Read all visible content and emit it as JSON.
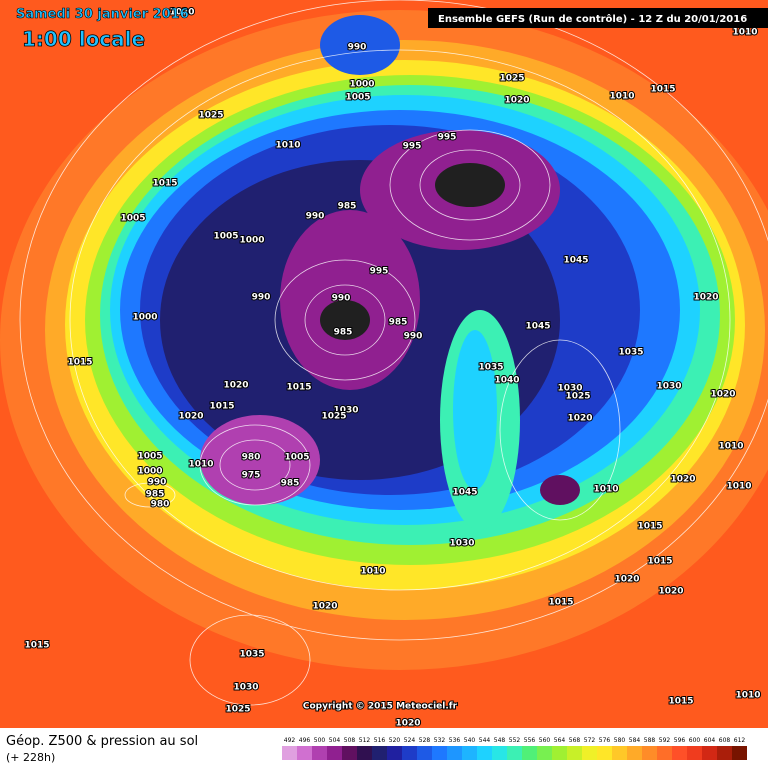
{
  "header": {
    "date": "Samedi 30 janvier 2016",
    "time": "1:00 locale",
    "model": "Ensemble GEFS  (Run de contrôle)  - 12 Z du 20/01/2016"
  },
  "copyright": "Copyright © 2015 Meteociel.fr",
  "footer": {
    "title": "Géop. Z500 & pression au sol",
    "lead": "(+ 228h)"
  },
  "legend": {
    "levels": [
      492,
      496,
      500,
      504,
      508,
      512,
      516,
      520,
      524,
      528,
      532,
      536,
      540,
      544,
      548,
      552,
      556,
      560,
      564,
      568,
      572,
      576,
      580,
      584,
      588,
      592,
      596,
      600,
      604,
      608,
      612
    ],
    "colors": [
      "#e0a0e0",
      "#d070d0",
      "#b040b0",
      "#902090",
      "#601060",
      "#301050",
      "#202070",
      "#2020a0",
      "#1e3cc8",
      "#1e5ae6",
      "#1e78ff",
      "#1e96ff",
      "#1eb4ff",
      "#1ed2ff",
      "#28e6e6",
      "#3cf0b4",
      "#50f078",
      "#78f050",
      "#a0f032",
      "#c8f028",
      "#f0f028",
      "#ffe628",
      "#ffc828",
      "#ffaa28",
      "#ff8c28",
      "#ff6e28",
      "#ff5028",
      "#f03c1e",
      "#d22814",
      "#aa1e0a",
      "#781400"
    ]
  },
  "pressure_labels": [
    1020,
    990,
    1000,
    1005,
    1025,
    1020,
    1010,
    1015,
    1010,
    1025,
    1010,
    995,
    995,
    1015,
    1005,
    990,
    985,
    1005,
    1000,
    1045,
    995,
    990,
    990,
    1000,
    985,
    985,
    990,
    1045,
    1020,
    1035,
    1015,
    1035,
    1040,
    1030,
    1025,
    1020,
    1020,
    1015,
    1030,
    1020,
    1015,
    1020,
    1030,
    1025,
    1010,
    1005,
    980,
    1005,
    1010,
    975,
    1000,
    1020,
    1010,
    985,
    1045,
    990,
    1010,
    985,
    980,
    1015,
    1030,
    1015,
    1010,
    1020,
    1020,
    1015,
    1020,
    1015,
    1035,
    1030,
    1025,
    1020,
    1010,
    1015
  ]
}
